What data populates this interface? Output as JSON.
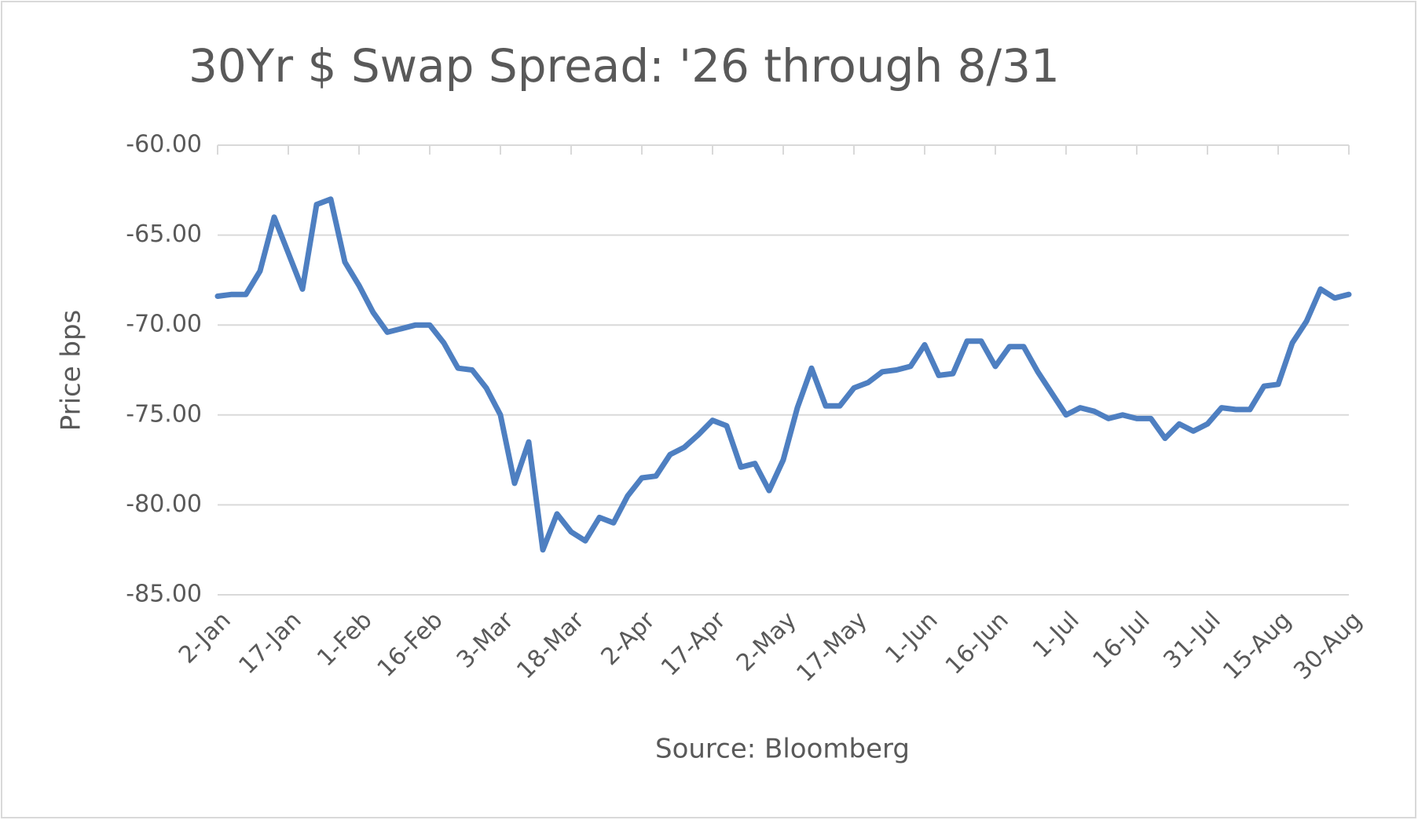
{
  "chart_data": {
    "type": "line",
    "title": "30Yr $ Swap Spread: '26 through 8/31",
    "y_label": "Price bps",
    "x_label": "Source: Bloomberg",
    "color": "#4e7fc1",
    "grid": true,
    "categories": [
      "2-Jan",
      null,
      null,
      null,
      null,
      "17-Jan",
      null,
      null,
      null,
      null,
      "1-Feb",
      null,
      null,
      null,
      null,
      "16-Feb",
      null,
      null,
      null,
      null,
      "3-Mar",
      null,
      null,
      null,
      null,
      "18-Mar",
      null,
      null,
      null,
      null,
      "2-Apr",
      null,
      null,
      null,
      null,
      "17-Apr",
      null,
      null,
      null,
      null,
      "2-May",
      null,
      null,
      null,
      null,
      "17-May",
      null,
      null,
      null,
      null,
      "1-Jun",
      null,
      null,
      null,
      null,
      "16-Jun",
      null,
      null,
      null,
      null,
      "1-Jul",
      null,
      null,
      null,
      null,
      "16-Jul",
      null,
      null,
      null,
      null,
      "31-Jul",
      null,
      null,
      null,
      null,
      "15-Aug",
      null,
      null,
      null,
      null,
      "30-Aug"
    ],
    "values": [
      -68.4,
      -68.3,
      -68.3,
      -67.0,
      -64.0,
      -66.0,
      -68.0,
      -63.3,
      -63.0,
      -66.5,
      -67.8,
      -69.3,
      -70.4,
      -70.2,
      -70.0,
      -70.0,
      -71.0,
      -72.4,
      -72.5,
      -73.5,
      -75.0,
      -78.8,
      -76.5,
      -82.5,
      -80.5,
      -81.5,
      -82.0,
      -80.7,
      -81.0,
      -79.5,
      -78.5,
      -78.4,
      -77.2,
      -76.8,
      -76.1,
      -75.3,
      -75.6,
      -77.9,
      -77.7,
      -79.2,
      -77.5,
      -74.6,
      -72.4,
      -74.5,
      -74.5,
      -73.5,
      -73.2,
      -72.6,
      -72.5,
      -72.3,
      -71.1,
      -72.8,
      -72.7,
      -70.9,
      -70.9,
      -72.3,
      -71.2,
      -71.2,
      -72.6,
      -73.8,
      -75.0,
      -74.6,
      -74.8,
      -75.2,
      -75.0,
      -75.2,
      -75.2,
      -76.3,
      -75.5,
      -75.9,
      -75.5,
      -74.6,
      -74.7,
      -74.7,
      -73.4,
      -73.3,
      -71.0,
      -69.8,
      -68.0,
      -68.5,
      -68.3
    ],
    "ylim": [
      -85,
      -60
    ],
    "yticks": [
      {
        "value": -60,
        "label": "-60.00"
      },
      {
        "value": -65,
        "label": "-65.00"
      },
      {
        "value": -70,
        "label": "-70.00"
      },
      {
        "value": -75,
        "label": "-75.00"
      },
      {
        "value": -80,
        "label": "-80.00"
      },
      {
        "value": -85,
        "label": "-85.00"
      }
    ]
  }
}
